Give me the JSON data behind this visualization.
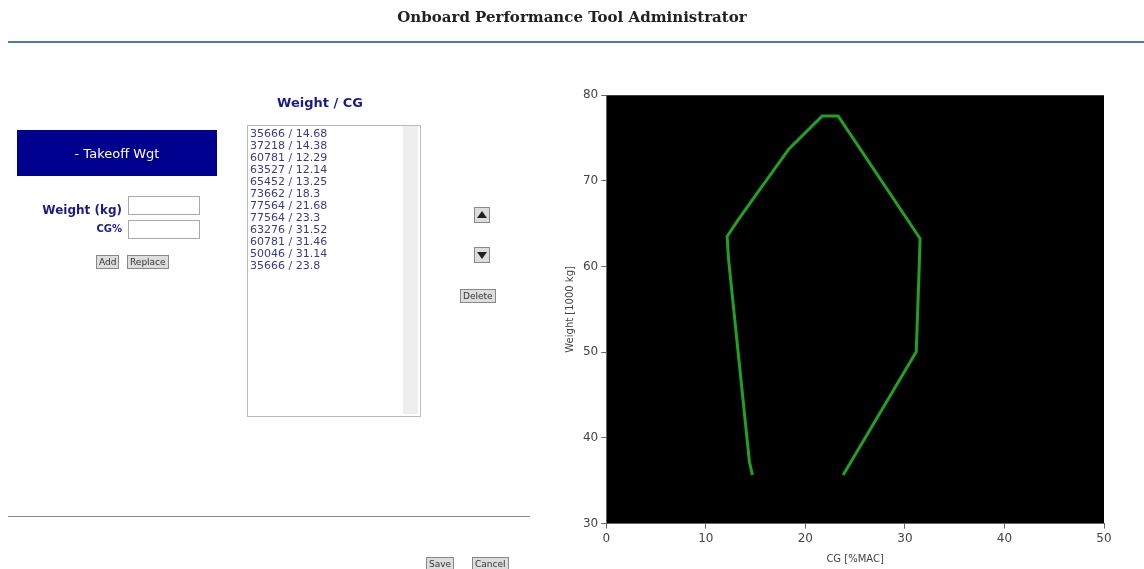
{
  "chart_data": {
    "type": "line",
    "title": "Onboard Performance Tool Administrator",
    "xlabel": "CG [%MAC]",
    "ylabel": "Weight [1000 kg]",
    "x": [
      14.68,
      14.38,
      12.29,
      12.14,
      13.25,
      18.3,
      21.68,
      23.3,
      31.52,
      31.46,
      31.14,
      23.8
    ],
    "series": [
      {
        "color": "#22a022",
        "values": [
          35.666,
          37.218,
          60.781,
          63.527,
          65.452,
          73.662,
          77.564,
          77.564,
          63.276,
          60.781,
          50.046,
          35.666
        ]
      }
    ],
    "xlim": [
      0,
      50
    ],
    "xticks": [
      0,
      10,
      20,
      30,
      40,
      50
    ],
    "ylim": [
      30,
      80
    ],
    "yticks": [
      30,
      40,
      50,
      60,
      70,
      80
    ],
    "grid": false,
    "legend": false,
    "marker": "none",
    "line_style": "solid",
    "annotations": [
      "Weight / CG",
      "- Takeoff Wgt",
      "Weight (kg)",
      "CG%",
      "Add",
      "Replace",
      "Delete",
      "Save",
      "Cancel",
      "35666 / 14.68",
      "37218 / 14.38",
      "60781 / 12.29",
      "63527 / 12.14",
      "65452 / 13.25",
      "73662 / 18.3",
      "77564 / 21.68",
      "77564 / 23.3",
      "63276 / 31.52",
      "60781 / 31.46",
      "50046 / 31.14",
      "35666 / 23.8"
    ]
  }
}
